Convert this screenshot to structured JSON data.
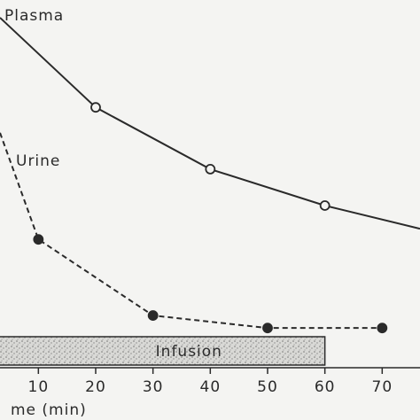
{
  "chart_data": {
    "type": "line",
    "x_label": "me (min)",
    "xlim": [
      3.3,
      76.6
    ],
    "xticks": [
      10,
      20,
      30,
      40,
      50,
      60,
      70
    ],
    "ylim": [
      0,
      100
    ],
    "series": [
      {
        "name": "Plasma",
        "color": "#2a2a2a",
        "line_style": "solid",
        "marker": "open",
        "x": [
          3.3,
          20,
          40,
          60,
          76.6
        ],
        "values": [
          95.2,
          70.8,
          54.0,
          44.1,
          37.8
        ]
      },
      {
        "name": "Urine",
        "color": "#2a2a2a",
        "line_style": "dashed",
        "marker": "filled",
        "x": [
          3.3,
          10,
          30,
          50,
          70
        ],
        "values": [
          63.9,
          34.9,
          14.2,
          10.8,
          10.8
        ]
      }
    ],
    "band": {
      "label": "Infusion",
      "start": 0,
      "end": 60
    }
  }
}
